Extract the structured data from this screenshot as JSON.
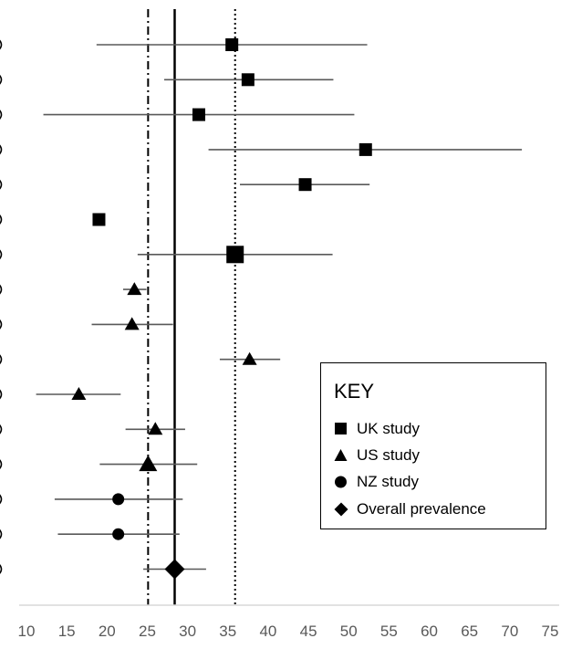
{
  "chart_data": {
    "type": "forest",
    "xlim": [
      10,
      75
    ],
    "x_ticks": [
      10,
      15,
      20,
      25,
      30,
      35,
      40,
      45,
      50,
      55,
      60,
      65,
      70,
      75
    ],
    "reference_lines": [
      {
        "value": 25.1,
        "style": "dash-dot"
      },
      {
        "value": 28.4,
        "style": "solid"
      },
      {
        "value": 35.9,
        "style": "dotted"
      }
    ],
    "studies": [
      {
        "group": "UK",
        "estimate": 35.5,
        "lower": 18.7,
        "upper": 52.3,
        "size": "medium"
      },
      {
        "group": "UK",
        "estimate": 37.5,
        "lower": 27.1,
        "upper": 48.1,
        "size": "medium"
      },
      {
        "group": "UK",
        "estimate": 31.4,
        "lower": 12.1,
        "upper": 50.7,
        "size": "medium"
      },
      {
        "group": "UK",
        "estimate": 52.1,
        "lower": 32.6,
        "upper": 71.5,
        "size": "medium"
      },
      {
        "group": "UK",
        "estimate": 44.6,
        "lower": 36.5,
        "upper": 52.6,
        "size": "medium"
      },
      {
        "group": "UK",
        "estimate": 19.0,
        "lower": 19.0,
        "upper": 19.0,
        "size": "medium"
      },
      {
        "group": "UK",
        "estimate": 35.9,
        "lower": 23.8,
        "upper": 48.0,
        "size": "large"
      },
      {
        "group": "US",
        "estimate": 23.4,
        "lower": 22.0,
        "upper": 24.9,
        "size": "medium"
      },
      {
        "group": "US",
        "estimate": 23.1,
        "lower": 18.1,
        "upper": 28.2,
        "size": "medium"
      },
      {
        "group": "US",
        "estimate": 37.7,
        "lower": 34.0,
        "upper": 41.5,
        "size": "medium"
      },
      {
        "group": "US",
        "estimate": 16.5,
        "lower": 11.2,
        "upper": 21.7,
        "size": "medium"
      },
      {
        "group": "US",
        "estimate": 26.0,
        "lower": 22.3,
        "upper": 29.7,
        "size": "medium"
      },
      {
        "group": "US",
        "estimate": 25.1,
        "lower": 19.1,
        "upper": 31.2,
        "size": "large"
      },
      {
        "group": "NZ",
        "estimate": 21.4,
        "lower": 13.5,
        "upper": 29.4,
        "size": "medium"
      },
      {
        "group": "NZ",
        "estimate": 21.4,
        "lower": 13.9,
        "upper": 29.0,
        "size": "medium"
      },
      {
        "group": "Overall",
        "estimate": 28.4,
        "lower": 24.5,
        "upper": 32.3,
        "size": "large"
      }
    ]
  },
  "legend": {
    "title": "KEY",
    "placement": "bottom-right",
    "items": [
      {
        "label": "UK study",
        "marker": "square"
      },
      {
        "label": "US study",
        "marker": "triangle"
      },
      {
        "label": "NZ study",
        "marker": "circle"
      },
      {
        "label": "Overall prevalence",
        "marker": "diamond"
      }
    ]
  },
  "colors": {
    "marker": "#000000",
    "ci_line": "#595959",
    "axis": "#d9d9d9",
    "tick_text": "#595959"
  }
}
